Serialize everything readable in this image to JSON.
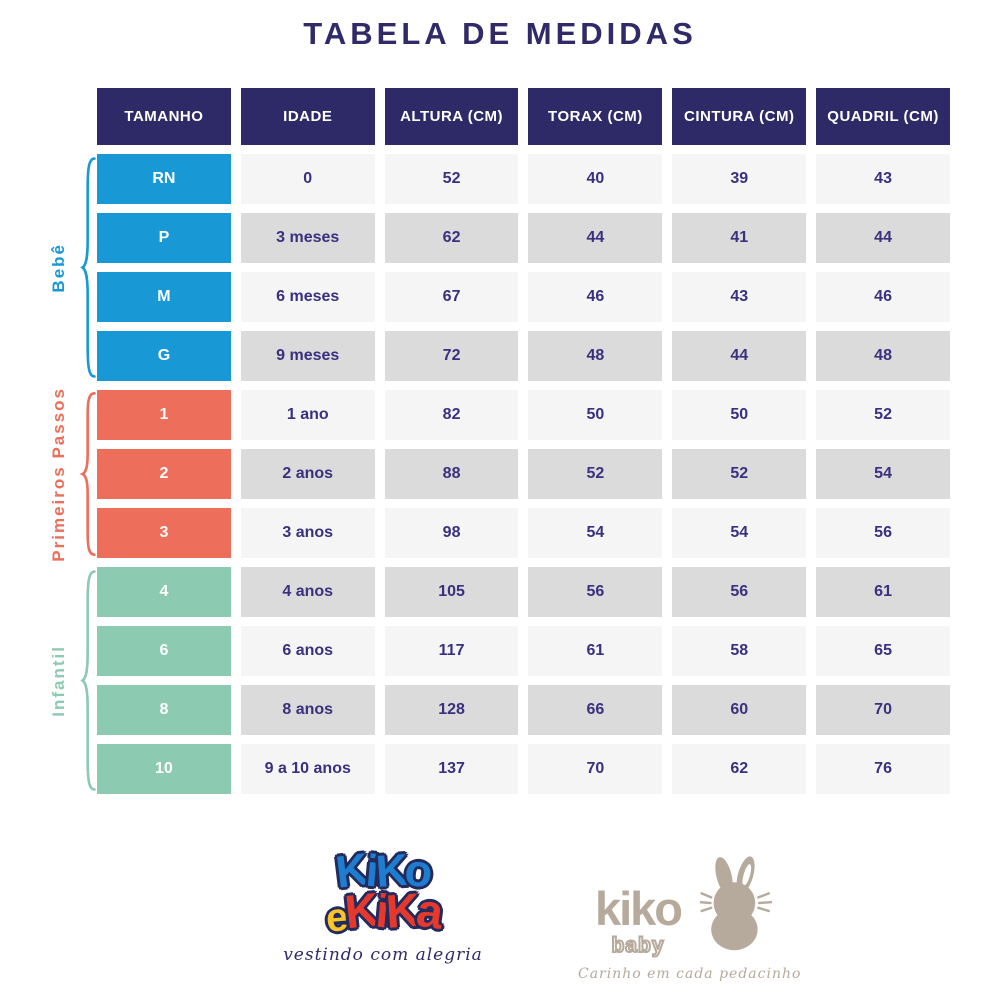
{
  "title": "TABELA DE MEDIDAS",
  "colors": {
    "header_bg": "#2e2967",
    "text_navy": "#39307e",
    "row_light": "#f5f5f5",
    "row_gray": "#dbdbdb",
    "group_bebe": "#1899d6",
    "group_primeiros_passos": "#ed6e5a",
    "group_infantil": "#8ccab2",
    "logo_blue": "#1e7dce",
    "logo_red": "#e6392d",
    "logo_yellow": "#fdc428",
    "logo_taupe": "#b5aa9b"
  },
  "table": {
    "headers": [
      "TAMANHO",
      "IDADE",
      "ALTURA (CM)",
      "TORAX (CM)",
      "CINTURA (CM)",
      "QUADRIL (CM)"
    ],
    "groups": [
      {
        "label": "Bebê",
        "color": "#1899d6",
        "rows": [
          {
            "tamanho": "RN",
            "idade": "0",
            "altura": "52",
            "torax": "40",
            "cintura": "39",
            "quadril": "43"
          },
          {
            "tamanho": "P",
            "idade": "3 meses",
            "altura": "62",
            "torax": "44",
            "cintura": "41",
            "quadril": "44"
          },
          {
            "tamanho": "M",
            "idade": "6 meses",
            "altura": "67",
            "torax": "46",
            "cintura": "43",
            "quadril": "46"
          },
          {
            "tamanho": "G",
            "idade": "9 meses",
            "altura": "72",
            "torax": "48",
            "cintura": "44",
            "quadril": "48"
          }
        ]
      },
      {
        "label": "Primeiros Passos",
        "color": "#ed6e5a",
        "rows": [
          {
            "tamanho": "1",
            "idade": "1 ano",
            "altura": "82",
            "torax": "50",
            "cintura": "50",
            "quadril": "52"
          },
          {
            "tamanho": "2",
            "idade": "2 anos",
            "altura": "88",
            "torax": "52",
            "cintura": "52",
            "quadril": "54"
          },
          {
            "tamanho": "3",
            "idade": "3 anos",
            "altura": "98",
            "torax": "54",
            "cintura": "54",
            "quadril": "56"
          }
        ]
      },
      {
        "label": "Infantil",
        "color": "#8ccab2",
        "rows": [
          {
            "tamanho": "4",
            "idade": "4 anos",
            "altura": "105",
            "torax": "56",
            "cintura": "56",
            "quadril": "61"
          },
          {
            "tamanho": "6",
            "idade": "6 anos",
            "altura": "117",
            "torax": "61",
            "cintura": "58",
            "quadril": "65"
          },
          {
            "tamanho": "8",
            "idade": "8 anos",
            "altura": "128",
            "torax": "66",
            "cintura": "60",
            "quadril": "70"
          },
          {
            "tamanho": "10",
            "idade": "9 a 10 anos",
            "altura": "137",
            "torax": "70",
            "cintura": "62",
            "quadril": "76"
          }
        ]
      }
    ]
  },
  "logos": {
    "kiko_e_kika": {
      "word1": "KiKo",
      "connector": "e",
      "word2": "KiKa",
      "tagline": "vestindo com alegria"
    },
    "kiko_baby": {
      "name": "kiko",
      "sub": "baby",
      "tagline": "Carinho em cada pedacinho"
    }
  }
}
